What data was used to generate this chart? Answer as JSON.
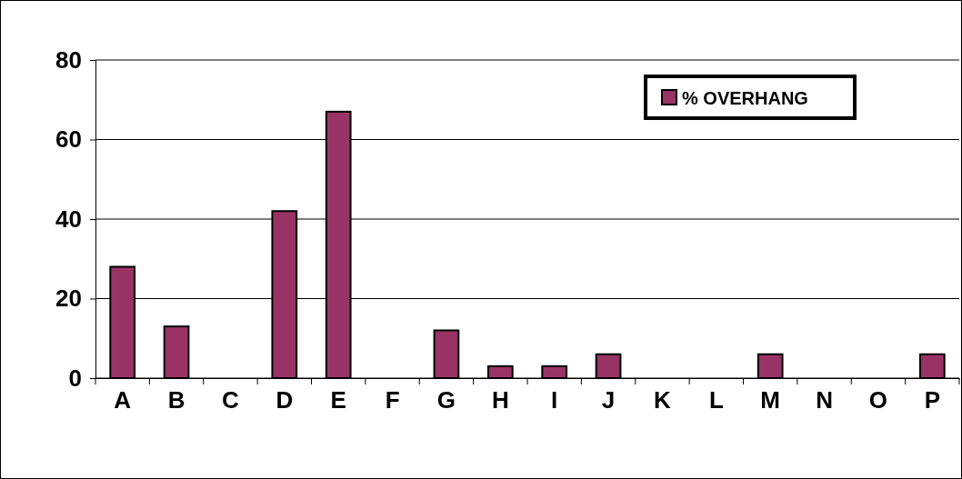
{
  "chart_data": {
    "type": "bar",
    "categories": [
      "A",
      "B",
      "C",
      "D",
      "E",
      "F",
      "G",
      "H",
      "I",
      "J",
      "K",
      "L",
      "M",
      "N",
      "O",
      "P"
    ],
    "series": [
      {
        "name": "% OVERHANG",
        "color": "#993366",
        "values": [
          28,
          13,
          0,
          42,
          67,
          0,
          12,
          3,
          3,
          6,
          0,
          0,
          6,
          0,
          0,
          6
        ]
      }
    ],
    "ylim": [
      0,
      80
    ],
    "yticks": [
      0,
      20,
      40,
      60,
      80
    ],
    "grid": "y",
    "legend": "top right"
  }
}
